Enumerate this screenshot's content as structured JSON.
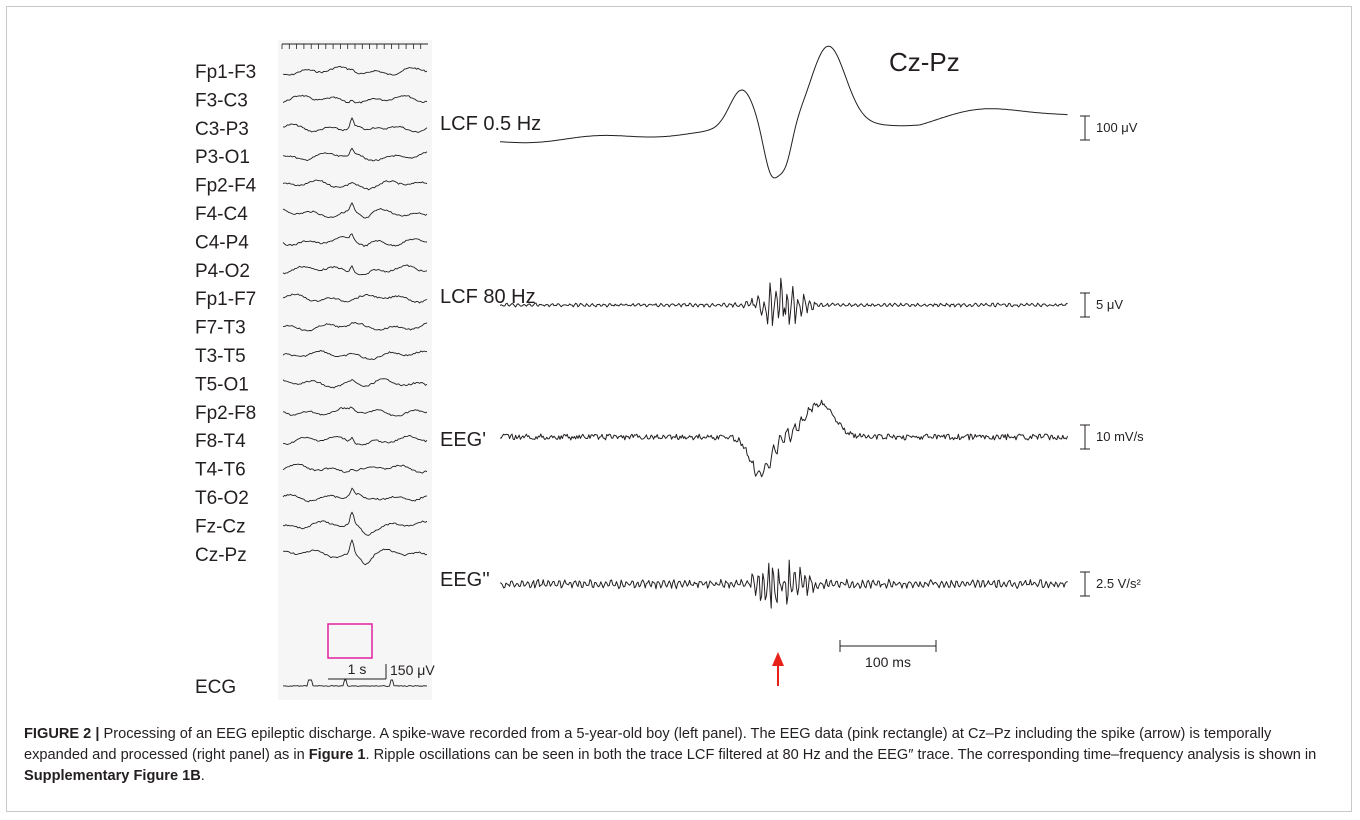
{
  "figure": {
    "channels": [
      "Fp1-F3",
      "F3-C3",
      "C3-P3",
      "P3-O1",
      "Fp2-F4",
      "F4-C4",
      "C4-P4",
      "P4-O2",
      "Fp1-F7",
      "F7-T3",
      "T3-T5",
      "T5-O1",
      "Fp2-F8",
      "F8-T4",
      "T4-T6",
      "T6-O2",
      "Fz-Cz",
      "Cz-Pz",
      "ECG"
    ],
    "left_scale": {
      "time": "1 s",
      "amplitude": "150 μV"
    },
    "right_title": "Cz-Pz",
    "traces": [
      {
        "label": "LCF 0.5 Hz",
        "scale": "100 μV"
      },
      {
        "label": "LCF 80 Hz",
        "scale": "5 μV"
      },
      {
        "label": "EEG'",
        "scale": "10 mV/s"
      },
      {
        "label": "EEG''",
        "scale": "2.5 V/s²"
      }
    ],
    "time_scale": "100 ms",
    "highlight_color": "#e0209f",
    "arrow_color": "#e8221b"
  },
  "caption": {
    "label": "FIGURE 2 |",
    "p1": " Processing of an EEG epileptic discharge. A spike-wave recorded from a 5-year-old boy (left panel). The EEG data (pink rectangle) at Cz–Pz including the spike (arrow) is temporally expanded and processed (right panel) as in ",
    "ref1": "Figure 1",
    "p2": ". Ripple oscillations can be seen in both the trace LCF filtered at 80 Hz and the EEG″ trace. The corresponding time–frequency analysis is shown in ",
    "ref2": "Supplementary Figure 1B",
    "p3": "."
  }
}
